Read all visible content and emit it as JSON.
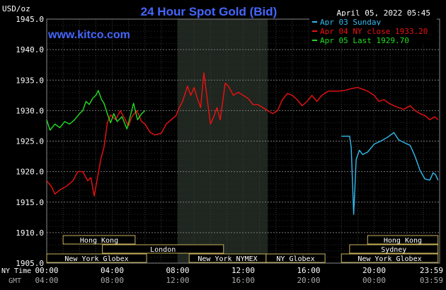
{
  "chart_data": {
    "type": "line",
    "title": "24 Hour Spot Gold (Bid)",
    "website": "www.kitco.com",
    "date_label": "April 05, 2022 05:45",
    "ylabel": "USD/oz",
    "ylim": [
      1905.0,
      1945.0
    ],
    "yticks": [
      "1905.0",
      "1910.0",
      "1915.0",
      "1920.0",
      "1925.0",
      "1930.0",
      "1935.0",
      "1940.0",
      "1945.0"
    ],
    "yticks_values": [
      1905,
      1910,
      1915,
      1920,
      1925,
      1930,
      1935,
      1940,
      1945
    ],
    "xlim_hours": [
      0,
      24
    ],
    "x_tick_hours": [
      0,
      4,
      8,
      12,
      16,
      20,
      24
    ],
    "ny_time_label": "NY Time",
    "gmt_label": "GMT",
    "ny_ticks": [
      "00:00",
      "04:00",
      "08:00",
      "12:00",
      "16:00",
      "20:00",
      "23:59"
    ],
    "gmt_ticks": [
      "04:00",
      "08:00",
      "12:00",
      "16:00",
      "20:00",
      "00:00",
      "03:59"
    ],
    "grid": true,
    "legend_position": "top-right",
    "highlight_hours": [
      8,
      13.5
    ],
    "sessions": [
      {
        "name": "Hong Kong",
        "start": 1,
        "end": 5.4,
        "row": 0
      },
      {
        "name": "London",
        "start": 3.4,
        "end": 10.8,
        "row": 1
      },
      {
        "name": "New York Globex",
        "start": 0,
        "end": 6.1,
        "row": 2
      },
      {
        "name": "New York NYMEX",
        "start": 8.7,
        "end": 13.4,
        "row": 2
      },
      {
        "name": "NY Globex",
        "start": 13.4,
        "end": 17,
        "row": 2
      },
      {
        "name": "Hong Kong",
        "start": 19.6,
        "end": 23.9,
        "row": 0
      },
      {
        "name": "Sydney",
        "start": 18.5,
        "end": 23.9,
        "row": 1
      },
      {
        "name": "New York Globex",
        "start": 18,
        "end": 23.9,
        "row": 2
      }
    ],
    "series": [
      {
        "name": "Apr 03 Sunday",
        "legend": "Apr 03 Sunday",
        "color": "#33bbee",
        "points": [
          [
            18.0,
            1925.8
          ],
          [
            18.5,
            1925.8
          ],
          [
            18.6,
            1924.0
          ],
          [
            18.75,
            1913.0
          ],
          [
            18.9,
            1922.0
          ],
          [
            19.1,
            1923.5
          ],
          [
            19.3,
            1922.8
          ],
          [
            19.6,
            1923.2
          ],
          [
            20.0,
            1924.5
          ],
          [
            20.4,
            1925.0
          ],
          [
            20.8,
            1925.6
          ],
          [
            21.2,
            1926.4
          ],
          [
            21.5,
            1925.2
          ],
          [
            21.8,
            1924.8
          ],
          [
            22.2,
            1924.3
          ],
          [
            22.5,
            1922.5
          ],
          [
            22.8,
            1920.2
          ],
          [
            23.1,
            1918.8
          ],
          [
            23.4,
            1918.6
          ],
          [
            23.6,
            1919.8
          ],
          [
            23.75,
            1919.5
          ],
          [
            23.9,
            1918.6
          ]
        ]
      },
      {
        "name": "Apr 04 NY close 1933.20",
        "legend": "Apr 04 NY close 1933.20",
        "color": "#ee1111",
        "points": [
          [
            0.0,
            1918.5
          ],
          [
            0.3,
            1917.5
          ],
          [
            0.5,
            1916.3
          ],
          [
            0.8,
            1917.0
          ],
          [
            1.2,
            1917.6
          ],
          [
            1.6,
            1918.5
          ],
          [
            1.9,
            1920.0
          ],
          [
            2.2,
            1920.0
          ],
          [
            2.5,
            1918.5
          ],
          [
            2.7,
            1919.0
          ],
          [
            2.9,
            1916.0
          ],
          [
            3.1,
            1919.0
          ],
          [
            3.3,
            1922.0
          ],
          [
            3.5,
            1924.0
          ],
          [
            3.7,
            1928.0
          ],
          [
            3.9,
            1929.3
          ],
          [
            4.2,
            1928.5
          ],
          [
            4.5,
            1930.0
          ],
          [
            4.8,
            1928.5
          ],
          [
            5.0,
            1927.5
          ],
          [
            5.2,
            1929.0
          ],
          [
            5.5,
            1930.0
          ],
          [
            5.8,
            1928.2
          ],
          [
            6.0,
            1927.8
          ],
          [
            6.3,
            1926.5
          ],
          [
            6.6,
            1926.0
          ],
          [
            7.0,
            1926.3
          ],
          [
            7.3,
            1927.8
          ],
          [
            7.6,
            1928.5
          ],
          [
            7.9,
            1929.2
          ],
          [
            8.1,
            1930.5
          ],
          [
            8.3,
            1931.5
          ],
          [
            8.6,
            1934.0
          ],
          [
            8.8,
            1932.5
          ],
          [
            9.0,
            1933.8
          ],
          [
            9.2,
            1932.0
          ],
          [
            9.4,
            1930.5
          ],
          [
            9.6,
            1936.2
          ],
          [
            9.8,
            1932.0
          ],
          [
            10.0,
            1927.8
          ],
          [
            10.2,
            1929.0
          ],
          [
            10.4,
            1930.5
          ],
          [
            10.6,
            1928.5
          ],
          [
            10.9,
            1934.5
          ],
          [
            11.1,
            1934.0
          ],
          [
            11.4,
            1932.5
          ],
          [
            11.7,
            1933.0
          ],
          [
            12.0,
            1932.5
          ],
          [
            12.3,
            1932.0
          ],
          [
            12.6,
            1931.0
          ],
          [
            12.9,
            1931.0
          ],
          [
            13.2,
            1930.5
          ],
          [
            13.5,
            1930.0
          ],
          [
            13.8,
            1929.5
          ],
          [
            14.1,
            1930.0
          ],
          [
            14.4,
            1931.8
          ],
          [
            14.7,
            1932.8
          ],
          [
            15.0,
            1932.5
          ],
          [
            15.3,
            1931.8
          ],
          [
            15.6,
            1930.8
          ],
          [
            15.9,
            1931.5
          ],
          [
            16.2,
            1932.5
          ],
          [
            16.5,
            1931.5
          ],
          [
            16.8,
            1932.5
          ],
          [
            17.2,
            1933.2
          ],
          [
            17.8,
            1933.2
          ],
          [
            18.2,
            1933.3
          ],
          [
            18.6,
            1933.6
          ],
          [
            19.0,
            1933.8
          ],
          [
            19.3,
            1933.5
          ],
          [
            19.6,
            1933.2
          ],
          [
            20.0,
            1932.5
          ],
          [
            20.3,
            1931.5
          ],
          [
            20.6,
            1931.8
          ],
          [
            20.9,
            1931.2
          ],
          [
            21.2,
            1930.8
          ],
          [
            21.5,
            1930.5
          ],
          [
            21.8,
            1930.2
          ],
          [
            22.2,
            1930.8
          ],
          [
            22.5,
            1930.0
          ],
          [
            22.8,
            1929.5
          ],
          [
            23.1,
            1929.2
          ],
          [
            23.4,
            1928.5
          ],
          [
            23.7,
            1929.0
          ],
          [
            23.9,
            1928.5
          ]
        ]
      },
      {
        "name": "Apr 05 Last 1929.70",
        "legend": "Apr 05 Last 1929.70",
        "color": "#22dd22",
        "points": [
          [
            0.0,
            1928.5
          ],
          [
            0.2,
            1926.8
          ],
          [
            0.5,
            1927.8
          ],
          [
            0.8,
            1927.2
          ],
          [
            1.1,
            1928.2
          ],
          [
            1.4,
            1927.8
          ],
          [
            1.7,
            1928.5
          ],
          [
            2.0,
            1929.5
          ],
          [
            2.2,
            1930.0
          ],
          [
            2.4,
            1931.5
          ],
          [
            2.6,
            1931.0
          ],
          [
            2.8,
            1932.0
          ],
          [
            3.0,
            1932.5
          ],
          [
            3.15,
            1933.3
          ],
          [
            3.35,
            1931.8
          ],
          [
            3.5,
            1931.2
          ],
          [
            3.7,
            1929.5
          ],
          [
            3.9,
            1928.0
          ],
          [
            4.1,
            1929.5
          ],
          [
            4.3,
            1928.2
          ],
          [
            4.6,
            1929.0
          ],
          [
            4.9,
            1927.0
          ],
          [
            5.1,
            1929.0
          ],
          [
            5.3,
            1931.2
          ],
          [
            5.55,
            1928.5
          ],
          [
            5.8,
            1929.5
          ],
          [
            6.0,
            1930.0
          ]
        ]
      }
    ]
  }
}
